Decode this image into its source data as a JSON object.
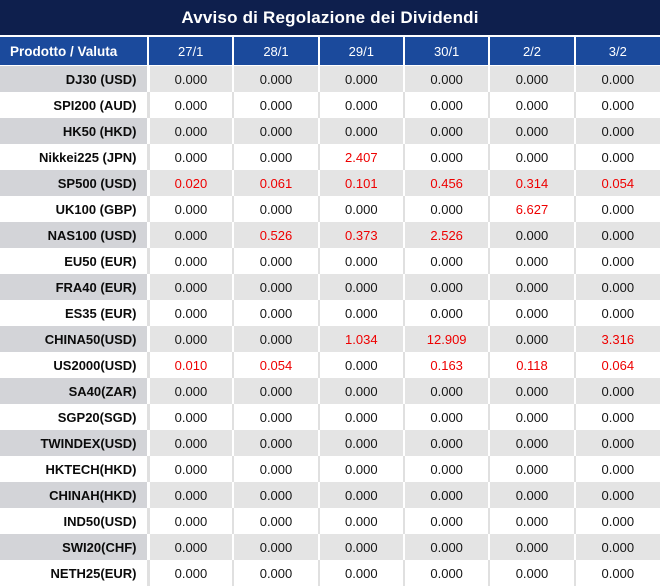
{
  "title": "Avviso di Regolazione dei Dividendi",
  "table": {
    "product_header": "Prodotto / Valuta",
    "date_headers": [
      "27/1",
      "28/1",
      "29/1",
      "30/1",
      "2/2",
      "3/2"
    ],
    "rows": [
      {
        "product": "DJ30 (USD)",
        "values": [
          "0.000",
          "0.000",
          "0.000",
          "0.000",
          "0.000",
          "0.000"
        ],
        "red_indices": []
      },
      {
        "product": "SPI200 (AUD)",
        "values": [
          "0.000",
          "0.000",
          "0.000",
          "0.000",
          "0.000",
          "0.000"
        ],
        "red_indices": []
      },
      {
        "product": "HK50 (HKD)",
        "values": [
          "0.000",
          "0.000",
          "0.000",
          "0.000",
          "0.000",
          "0.000"
        ],
        "red_indices": []
      },
      {
        "product": "Nikkei225 (JPN)",
        "values": [
          "0.000",
          "0.000",
          "2.407",
          "0.000",
          "0.000",
          "0.000"
        ],
        "red_indices": [
          2
        ]
      },
      {
        "product": "SP500 (USD)",
        "values": [
          "0.020",
          "0.061",
          "0.101",
          "0.456",
          "0.314",
          "0.054"
        ],
        "red_indices": [
          0,
          1,
          2,
          3,
          4,
          5
        ]
      },
      {
        "product": "UK100 (GBP)",
        "values": [
          "0.000",
          "0.000",
          "0.000",
          "0.000",
          "6.627",
          "0.000"
        ],
        "red_indices": [
          4
        ]
      },
      {
        "product": "NAS100 (USD)",
        "values": [
          "0.000",
          "0.526",
          "0.373",
          "2.526",
          "0.000",
          "0.000"
        ],
        "red_indices": [
          1,
          2,
          3
        ]
      },
      {
        "product": "EU50 (EUR)",
        "values": [
          "0.000",
          "0.000",
          "0.000",
          "0.000",
          "0.000",
          "0.000"
        ],
        "red_indices": []
      },
      {
        "product": "FRA40 (EUR)",
        "values": [
          "0.000",
          "0.000",
          "0.000",
          "0.000",
          "0.000",
          "0.000"
        ],
        "red_indices": []
      },
      {
        "product": "ES35 (EUR)",
        "values": [
          "0.000",
          "0.000",
          "0.000",
          "0.000",
          "0.000",
          "0.000"
        ],
        "red_indices": []
      },
      {
        "product": "CHINA50(USD)",
        "values": [
          "0.000",
          "0.000",
          "1.034",
          "12.909",
          "0.000",
          "3.316"
        ],
        "red_indices": [
          2,
          3,
          5
        ]
      },
      {
        "product": "US2000(USD)",
        "values": [
          "0.010",
          "0.054",
          "0.000",
          "0.163",
          "0.118",
          "0.064"
        ],
        "red_indices": [
          0,
          1,
          3,
          4,
          5
        ]
      },
      {
        "product": "SA40(ZAR)",
        "values": [
          "0.000",
          "0.000",
          "0.000",
          "0.000",
          "0.000",
          "0.000"
        ],
        "red_indices": []
      },
      {
        "product": "SGP20(SGD)",
        "values": [
          "0.000",
          "0.000",
          "0.000",
          "0.000",
          "0.000",
          "0.000"
        ],
        "red_indices": []
      },
      {
        "product": "TWINDEX(USD)",
        "values": [
          "0.000",
          "0.000",
          "0.000",
          "0.000",
          "0.000",
          "0.000"
        ],
        "red_indices": []
      },
      {
        "product": "HKTECH(HKD)",
        "values": [
          "0.000",
          "0.000",
          "0.000",
          "0.000",
          "0.000",
          "0.000"
        ],
        "red_indices": []
      },
      {
        "product": "CHINAH(HKD)",
        "values": [
          "0.000",
          "0.000",
          "0.000",
          "0.000",
          "0.000",
          "0.000"
        ],
        "red_indices": []
      },
      {
        "product": "IND50(USD)",
        "values": [
          "0.000",
          "0.000",
          "0.000",
          "0.000",
          "0.000",
          "0.000"
        ],
        "red_indices": []
      },
      {
        "product": "SWI20(CHF)",
        "values": [
          "0.000",
          "0.000",
          "0.000",
          "0.000",
          "0.000",
          "0.000"
        ],
        "red_indices": []
      },
      {
        "product": "NETH25(EUR)",
        "values": [
          "0.000",
          "0.000",
          "0.000",
          "0.000",
          "0.000",
          "0.000"
        ],
        "red_indices": []
      }
    ]
  },
  "colors": {
    "title_bar_bg": "#0e1f4d",
    "header_bg": "#1b4a9c",
    "row_gray_product_bg": "#d3d4d8",
    "row_gray_value_bg": "#e4e4e4",
    "negative_value_red": "#ee0000",
    "text_dark": "#151515"
  }
}
